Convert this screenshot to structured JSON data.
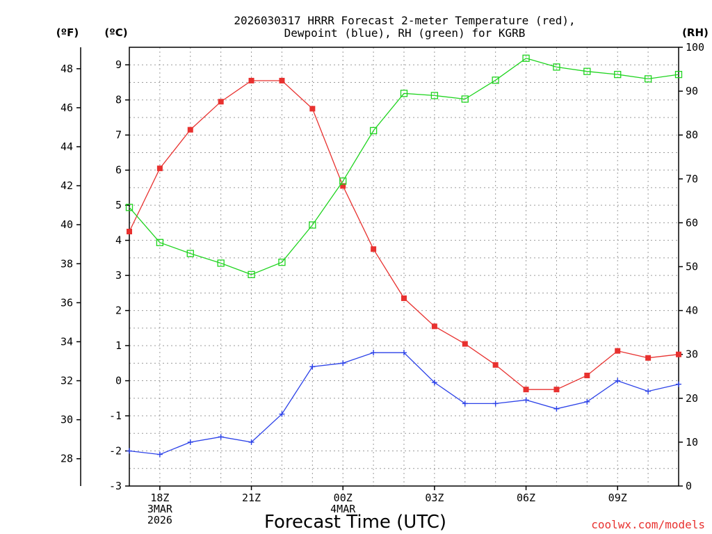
{
  "chart_data": {
    "type": "line",
    "title_line1": "2026030317 HRRR Forecast 2-meter Temperature (red),",
    "title_line2": "Dewpoint (blue), RH (green) for KGRB",
    "xlabel": "Forecast Time (UTC)",
    "credit": "coolwx.com/models",
    "units": {
      "fahrenheit": "(ºF)",
      "celsius": "(ºC)",
      "rh": "(RH)"
    },
    "x_hours": [
      17,
      18,
      19,
      20,
      21,
      22,
      23,
      24,
      25,
      26,
      27,
      28,
      29,
      30,
      31,
      32,
      33,
      34,
      35
    ],
    "x_ticks": [
      {
        "hour": 18,
        "lines": [
          "18Z",
          "3MAR",
          "2026"
        ]
      },
      {
        "hour": 21,
        "lines": [
          "21Z"
        ]
      },
      {
        "hour": 24,
        "lines": [
          "00Z",
          "4MAR"
        ]
      },
      {
        "hour": 27,
        "lines": [
          "03Z"
        ]
      },
      {
        "hour": 30,
        "lines": [
          "06Z"
        ]
      },
      {
        "hour": 33,
        "lines": [
          "09Z"
        ]
      }
    ],
    "celsius_axis": {
      "range": [
        -3,
        9.5
      ],
      "ticks": [
        "-3",
        "-2",
        "-1",
        "0",
        "1",
        "2",
        "3",
        "4",
        "5",
        "6",
        "7",
        "8",
        "9"
      ]
    },
    "fahrenheit_axis": {
      "ticks": [
        "28",
        "30",
        "32",
        "34",
        "36",
        "38",
        "40",
        "42",
        "44",
        "46",
        "48"
      ]
    },
    "rh_axis": {
      "range": [
        0,
        100
      ],
      "ticks": [
        "0",
        "10",
        "20",
        "30",
        "40",
        "50",
        "60",
        "70",
        "80",
        "90",
        "100"
      ]
    },
    "series": [
      {
        "name": "2-meter Temperature",
        "axis": "celsius",
        "color": "#e8312f",
        "marker": "filled-square",
        "values": [
          4.25,
          6.05,
          7.15,
          7.95,
          8.55,
          8.55,
          7.75,
          5.55,
          3.75,
          2.35,
          1.55,
          1.05,
          0.45,
          -0.25,
          -0.25,
          0.15,
          0.85,
          0.65,
          0.75
        ]
      },
      {
        "name": "Dewpoint",
        "axis": "celsius",
        "color": "#2b41e8",
        "marker": "plus",
        "values": [
          -2.0,
          -2.1,
          -1.75,
          -1.6,
          -1.75,
          -0.95,
          0.4,
          0.5,
          0.8,
          0.8,
          -0.05,
          -0.65,
          -0.65,
          -0.55,
          -0.8,
          -0.6,
          0.0,
          -0.3,
          -0.1
        ]
      },
      {
        "name": "RH",
        "axis": "rh",
        "color": "#1fd41f",
        "marker": "open-square",
        "values": [
          63.5,
          55.5,
          53.0,
          50.8,
          48.2,
          51.0,
          59.5,
          69.5,
          81.0,
          89.5,
          89.0,
          88.2,
          92.5,
          97.5,
          95.5,
          94.5,
          93.8,
          92.8,
          93.8
        ]
      }
    ]
  }
}
